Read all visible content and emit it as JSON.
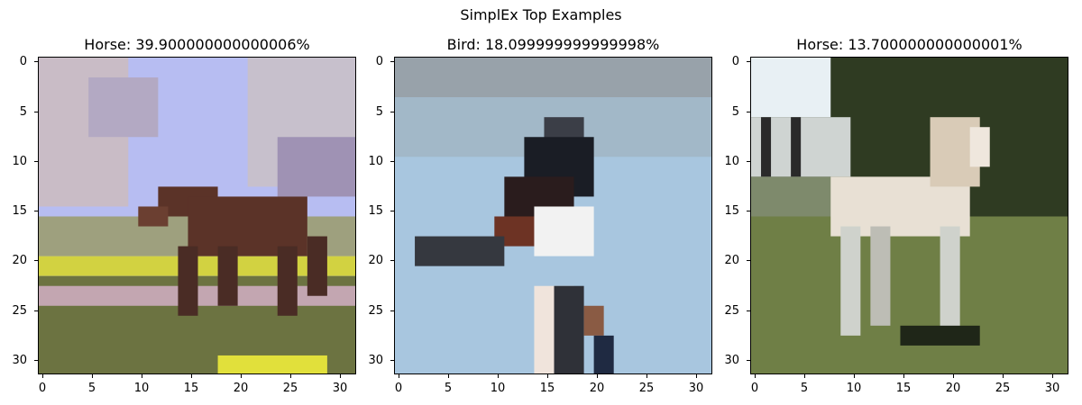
{
  "figure": {
    "suptitle": "SimplEx Top Examples"
  },
  "panels": [
    {
      "title": "Horse: 39.900000000000006%",
      "image_desc": "horse",
      "palette": {
        "sky": "#b7bdf2",
        "tree": "#c9bcc6",
        "ground": "#6c7341",
        "animal": "#5b3328",
        "accent": "#d2d241"
      }
    },
    {
      "title": "Bird: 18.099999999999998%",
      "image_desc": "bird",
      "palette": {
        "sky": "#a8c6df",
        "animal": "#1a1d25",
        "white": "#f2f2f2",
        "brown": "#6d3324",
        "post": "#2f3138"
      }
    },
    {
      "title": "Horse: 13.700000000000001%",
      "image_desc": "horse",
      "palette": {
        "sky": "#e8f0f4",
        "tree": "#2f3b22",
        "ground": "#6f7f46",
        "animal": "#e8e0d4",
        "dark": "#1f2618"
      }
    }
  ],
  "axis": {
    "x_ticks": [
      "0",
      "5",
      "10",
      "15",
      "20",
      "25",
      "30"
    ],
    "y_ticks": [
      "0",
      "5",
      "10",
      "15",
      "20",
      "25",
      "30"
    ]
  }
}
